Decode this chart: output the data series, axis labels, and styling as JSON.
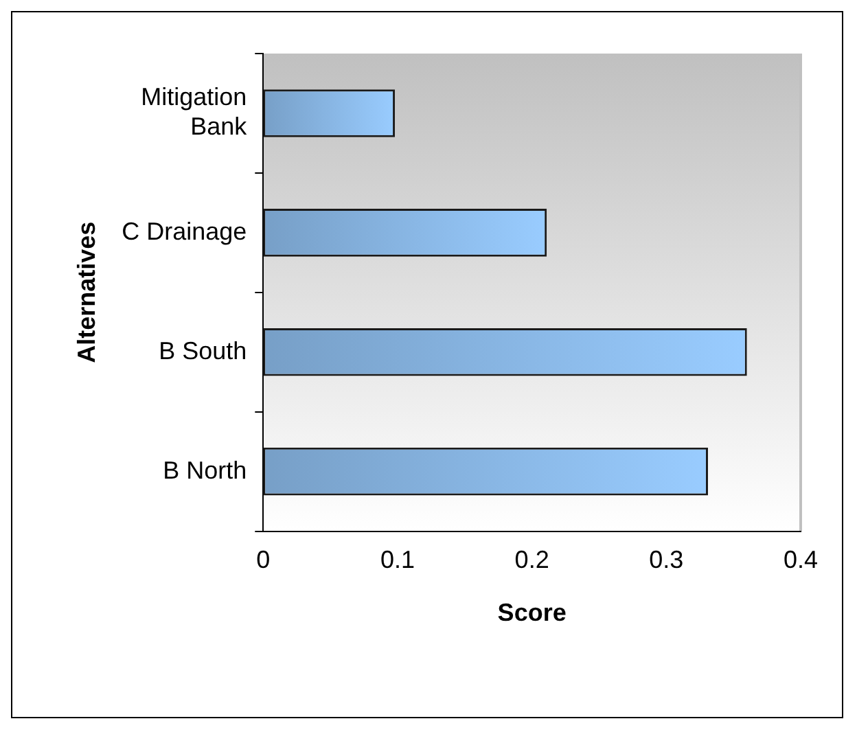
{
  "chart_data": {
    "type": "bar",
    "orientation": "horizontal",
    "xlabel": "Score",
    "ylabel": "Alternatives",
    "categories": [
      "Mitigation Bank",
      "C Drainage",
      "B South",
      "B North"
    ],
    "values": [
      0.098,
      0.211,
      0.36,
      0.331
    ],
    "color": "#99ccff",
    "xlim": [
      0,
      0.4
    ],
    "xticks": [
      0,
      0.1,
      0.2,
      0.3,
      0.4
    ],
    "grid": false,
    "legend": false
  }
}
